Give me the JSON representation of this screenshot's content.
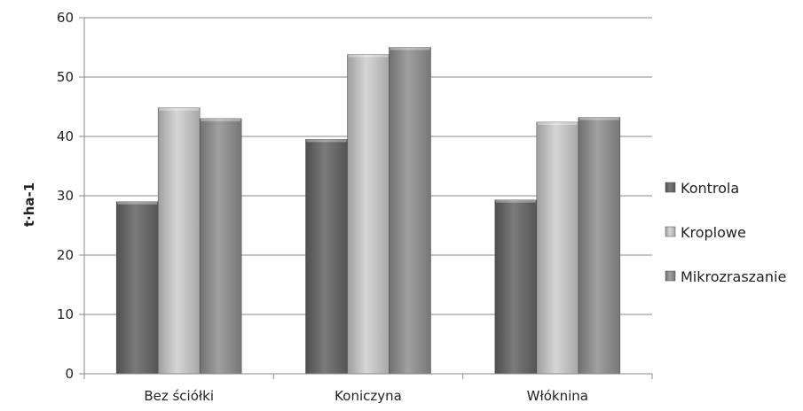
{
  "chart_data": {
    "type": "bar",
    "title": "",
    "xlabel": "",
    "ylabel": "t·ha-1",
    "ylim": [
      0,
      60
    ],
    "yticks": [
      0,
      10,
      20,
      30,
      40,
      50,
      60
    ],
    "grid": true,
    "legend_position": "right",
    "categories": [
      "Bez ściółki",
      "Koniczyna",
      "Włóknina"
    ],
    "series": [
      {
        "name": "Kontrola",
        "values": [
          29,
          39.5,
          29.3
        ],
        "color": "#6b6b6b"
      },
      {
        "name": "Kroplowe",
        "values": [
          44.8,
          53.8,
          42.4
        ],
        "color": "#bdbdbd"
      },
      {
        "name": "Mikrozraszanie",
        "values": [
          43,
          55,
          43.2
        ],
        "color": "#8f8f8f"
      }
    ]
  }
}
